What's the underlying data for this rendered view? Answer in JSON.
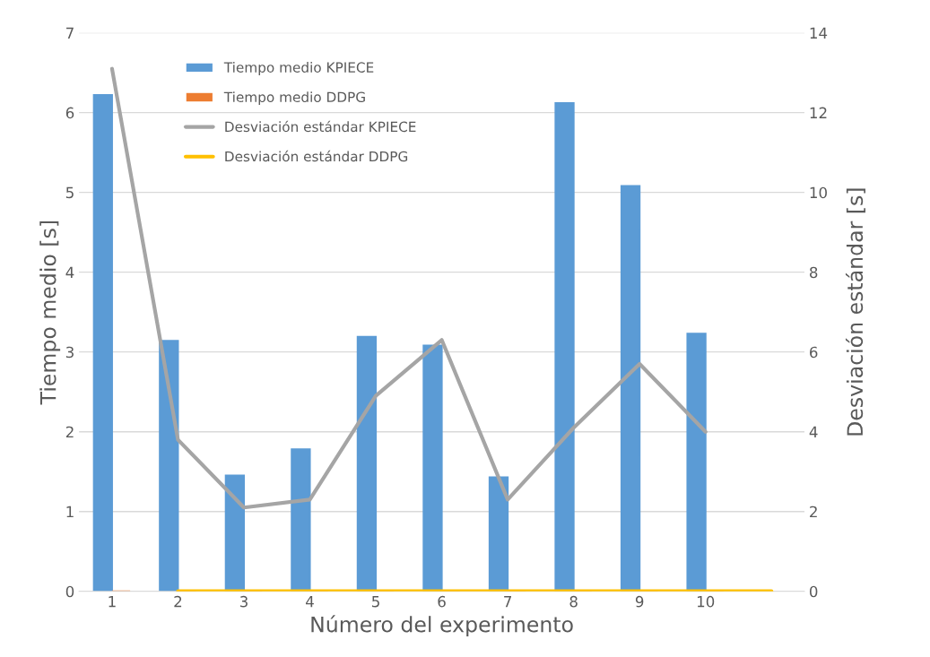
{
  "chart_data": {
    "type": "bar",
    "xlabel": "Número del experimento",
    "ylabel": "Tiempo medio [s]",
    "y2label": "Desviación estándar [s]",
    "categories": [
      "1",
      "2",
      "3",
      "4",
      "5",
      "6",
      "7",
      "8",
      "9",
      "10",
      null
    ],
    "series": [
      {
        "name": "Tiempo medio KPIECE",
        "color": "#5b9bd5",
        "values": [
          6.22,
          3.14,
          1.45,
          1.78,
          3.19,
          3.08,
          1.43,
          6.12,
          5.08,
          3.23,
          null
        ]
      },
      {
        "name": "Tiempo medio DDPG",
        "color": "#ed7d31",
        "values": [
          0,
          0,
          0,
          0,
          0,
          0,
          0,
          0,
          0,
          0,
          null
        ]
      },
      {
        "name": "Desviación estándar KPIECE",
        "type": "line",
        "axis": "y2",
        "color": "#a5a5a5",
        "values": [
          13.1,
          3.8,
          2.1,
          2.3,
          4.9,
          6.3,
          2.3,
          4.1,
          5.7,
          4.0,
          null
        ]
      },
      {
        "name": "Desviación estándar DDPG",
        "type": "line",
        "axis": "y2",
        "color": "#ffc000",
        "values": [
          null,
          0,
          0,
          0,
          0,
          0,
          0,
          0,
          0,
          0,
          0
        ]
      }
    ],
    "ylim": [
      0,
      7
    ],
    "yticks": [
      0,
      1,
      2,
      3,
      4,
      5,
      6,
      7
    ],
    "y2lim": [
      0,
      14
    ],
    "y2ticks": [
      0,
      2,
      4,
      6,
      8,
      10,
      12,
      14
    ],
    "grid": "y",
    "legend": "top left"
  }
}
